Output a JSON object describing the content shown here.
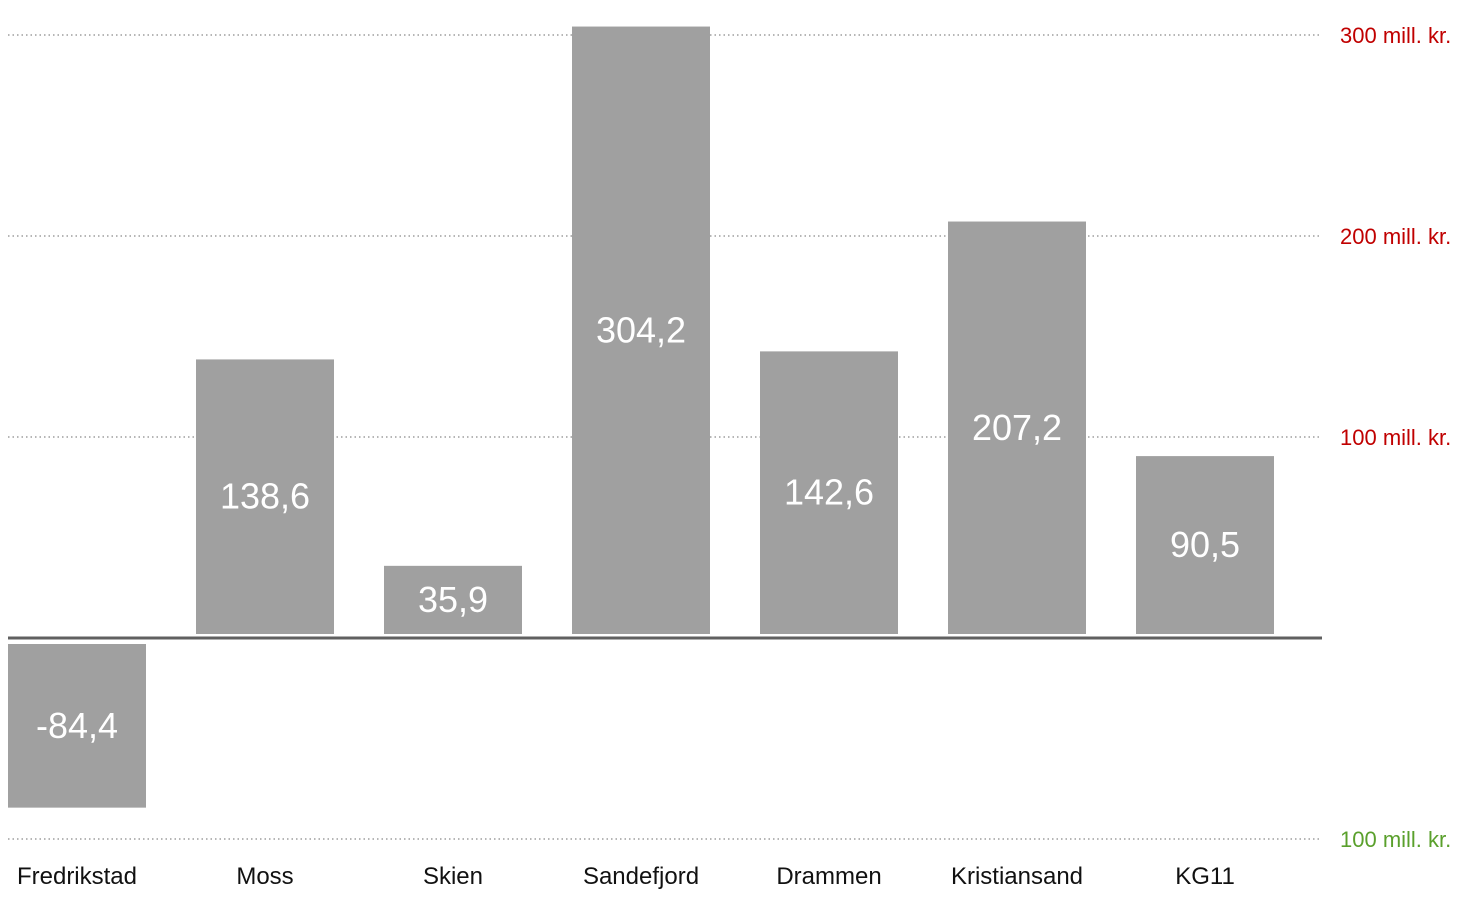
{
  "chart_data": {
    "type": "bar",
    "categories": [
      "Fredrikstad",
      "Moss",
      "Skien",
      "Sandefjord",
      "Drammen",
      "Kristiansand",
      "KG11"
    ],
    "values": [
      -84.4,
      138.6,
      35.9,
      304.2,
      142.6,
      207.2,
      90.5
    ],
    "value_labels": [
      "-84,4",
      "138,6",
      "35,9",
      "304,2",
      "142,6",
      "207,2",
      "90,5"
    ],
    "y_ticks": [
      {
        "value": 300,
        "label": "300 mill. kr.",
        "color": "#c00000"
      },
      {
        "value": 200,
        "label": "200 mill. kr.",
        "color": "#c00000"
      },
      {
        "value": 100,
        "label": "100 mill. kr.",
        "color": "#c00000"
      },
      {
        "value": -100,
        "label": "100 mill. kr.",
        "color": "#5aa02c"
      }
    ],
    "ylim": [
      -100,
      310
    ],
    "grid": true,
    "bar_color": "#a0a0a0",
    "baseline_color": "#606060"
  }
}
